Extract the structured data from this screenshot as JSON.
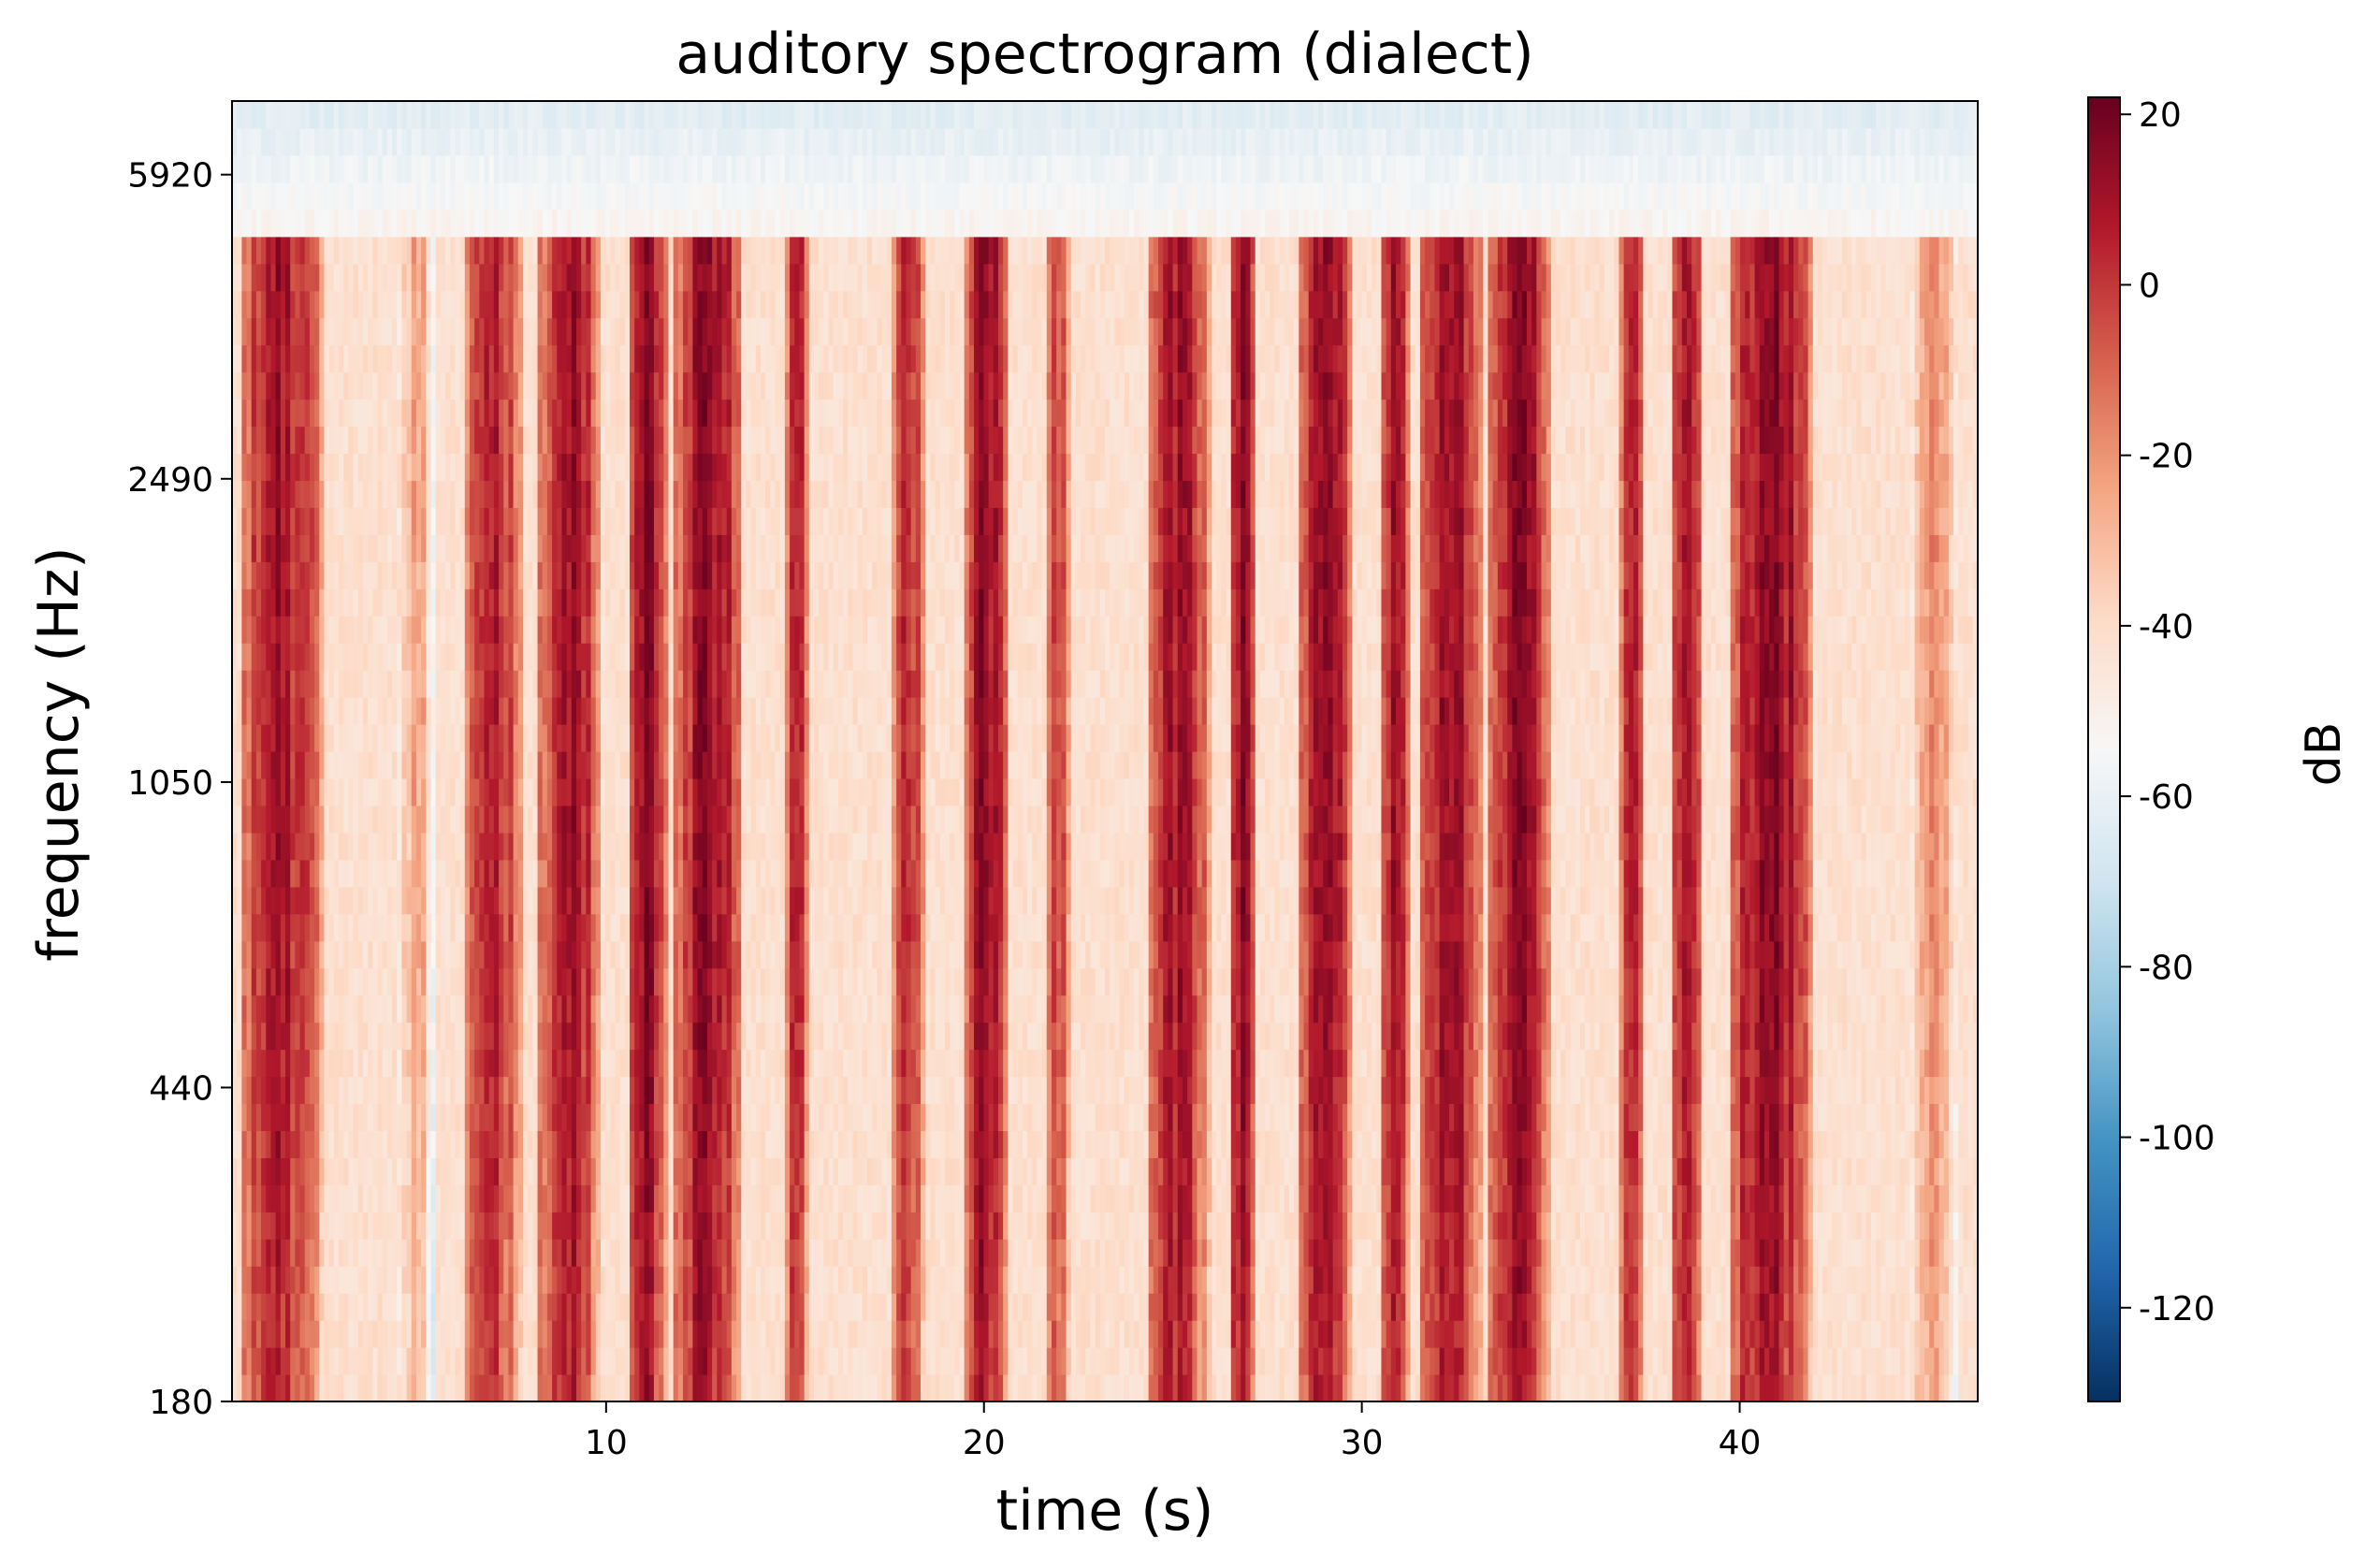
{
  "chart_data": {
    "type": "heatmap",
    "title": "auditory spectrogram (dialect)",
    "xlabel": "time (s)",
    "ylabel": "frequency (Hz)",
    "colorbar_label": "dB",
    "colormap": "RdBu_r",
    "xlim": [
      0.1,
      46.3
    ],
    "x_ticks": [
      10,
      20,
      30,
      40
    ],
    "x_tick_labels": [
      "10",
      "20",
      "30",
      "40"
    ],
    "y_scale": "log",
    "ylim": [
      180,
      7300
    ],
    "y_ticks": [
      180,
      440,
      1050,
      2490,
      5920
    ],
    "y_tick_labels": [
      "180",
      "440",
      "1050",
      "2490",
      "5920"
    ],
    "clim": [
      -131,
      22
    ],
    "colorbar_ticks": [
      20,
      0,
      -20,
      -40,
      -60,
      -80,
      -100,
      -120
    ],
    "colorbar_tick_labels": [
      "20",
      "0",
      "-20",
      "-40",
      "-60",
      "-80",
      "-100",
      "-120"
    ],
    "colors": {
      "low": "#053061",
      "mid": "#f7f7f7",
      "high": "#67001f",
      "background": "#ffffff",
      "axis": "#000000"
    },
    "intensity_bands": [
      {
        "t_start": 0.3,
        "t_end": 2.5,
        "peak_db": 8
      },
      {
        "t_start": 4.4,
        "t_end": 5.5,
        "peak_db": -25
      },
      {
        "t_start": 6.2,
        "t_end": 7.8,
        "peak_db": 5
      },
      {
        "t_start": 8.2,
        "t_end": 9.9,
        "peak_db": 10
      },
      {
        "t_start": 10.6,
        "t_end": 11.6,
        "peak_db": 14
      },
      {
        "t_start": 11.8,
        "t_end": 13.6,
        "peak_db": 12
      },
      {
        "t_start": 14.7,
        "t_end": 15.4,
        "peak_db": 5
      },
      {
        "t_start": 17.6,
        "t_end": 18.4,
        "peak_db": 6
      },
      {
        "t_start": 19.5,
        "t_end": 20.6,
        "peak_db": 14
      },
      {
        "t_start": 21.6,
        "t_end": 22.3,
        "peak_db": -5
      },
      {
        "t_start": 24.3,
        "t_end": 26.0,
        "peak_db": 8
      },
      {
        "t_start": 26.5,
        "t_end": 27.2,
        "peak_db": 14
      },
      {
        "t_start": 28.3,
        "t_end": 29.8,
        "peak_db": 10
      },
      {
        "t_start": 30.5,
        "t_end": 31.3,
        "peak_db": 8
      },
      {
        "t_start": 31.5,
        "t_end": 33.2,
        "peak_db": 14
      },
      {
        "t_start": 33.4,
        "t_end": 35.0,
        "peak_db": 12
      },
      {
        "t_start": 36.8,
        "t_end": 37.5,
        "peak_db": 6
      },
      {
        "t_start": 38.2,
        "t_end": 39.0,
        "peak_db": 12
      },
      {
        "t_start": 39.7,
        "t_end": 41.9,
        "peak_db": 14
      },
      {
        "t_start": 44.5,
        "t_end": 45.8,
        "peak_db": -15
      }
    ]
  }
}
